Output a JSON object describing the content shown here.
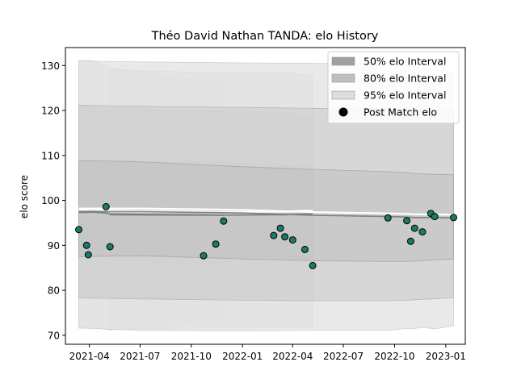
{
  "chart_data": {
    "type": "scatter",
    "title": "Théo David Nathan TANDA: elo History",
    "xlabel": "",
    "ylabel": "elo score",
    "ylim": [
      68,
      134
    ],
    "xlim": [
      "2021-02-17",
      "2023-02-05"
    ],
    "yticks": [
      70,
      80,
      90,
      100,
      110,
      120,
      130
    ],
    "xticks": [
      {
        "date": "2021-04-01",
        "label": "2021-04"
      },
      {
        "date": "2021-07-01",
        "label": "2021-07"
      },
      {
        "date": "2021-10-01",
        "label": "2021-10"
      },
      {
        "date": "2022-01-01",
        "label": "2022-01"
      },
      {
        "date": "2022-04-01",
        "label": "2022-04"
      },
      {
        "date": "2022-07-01",
        "label": "2022-07"
      },
      {
        "date": "2022-10-01",
        "label": "2022-10"
      },
      {
        "date": "2023-01-01",
        "label": "2023-01"
      }
    ],
    "legend": {
      "placement": "upper right",
      "entries": [
        {
          "label": "50% elo Interval",
          "kind": "patch",
          "color": "#a0a0a0"
        },
        {
          "label": "80% elo Interval",
          "kind": "patch",
          "color": "#bebebe"
        },
        {
          "label": "95% elo Interval",
          "kind": "patch",
          "color": "#dcdcdc"
        },
        {
          "label": "Post Match elo",
          "kind": "marker",
          "color": "#000000"
        }
      ]
    },
    "band_colors": {
      "p95": "#e2e2e2",
      "p80": "#c9c9c9",
      "p50": "#bababa",
      "mean": "#808080",
      "mean_line_white": "#ffffff"
    },
    "point_color": "#1a7a6a",
    "series": [
      {
        "kind": "bands",
        "x": [
          "2021-03-13",
          "2021-03-27",
          "2021-04-03",
          "2021-05-01",
          "2021-05-08",
          "2021-10-23",
          "2021-11-14",
          "2021-11-28"
        ],
        "mean": [
          97.3,
          97.3,
          97.4,
          97.2,
          97.0,
          96.8,
          96.7,
          96.7
        ],
        "p50_low": [
          87.5,
          87.6,
          87.8,
          87.8,
          88.0,
          86.8,
          87.2,
          87.2
        ],
        "p50_high": [
          108.8,
          108.7,
          108.6,
          108.4,
          108.2,
          106.4,
          106.6,
          106.6
        ],
        "p80_low": [
          78.3,
          78.3,
          78.6,
          78.8,
          79.0,
          78.8,
          78.6,
          78.6
        ],
        "p80_high": [
          121.2,
          120.9,
          120.8,
          120.2,
          119.9,
          118.7,
          118.8,
          118.8
        ],
        "p95_low": [
          71.6,
          71.6,
          71.7,
          71.3,
          71.2,
          72.8,
          72.5,
          72.5
        ],
        "p95_high": [
          131.0,
          131.1,
          131.1,
          130.0,
          129.5,
          126.7,
          127.7,
          127.7
        ]
      },
      {
        "kind": "bands",
        "x": [
          "2021-05-08",
          "2021-11-14",
          "2022-02-26",
          "2022-03-10",
          "2022-03-18",
          "2022-04-01",
          "2022-04-23",
          "2022-05-07"
        ],
        "mean": [
          96.8,
          96.7,
          96.8,
          96.8,
          96.8,
          96.9,
          97.0,
          97.0
        ],
        "p50_low": [
          87.8,
          87.6,
          87.5,
          87.5,
          87.4,
          87.4,
          87.2,
          87.2
        ],
        "p50_high": [
          108.6,
          108.4,
          108.0,
          107.8,
          107.8,
          107.6,
          107.5,
          107.3
        ],
        "p80_low": [
          78.4,
          78.5,
          78.6,
          78.7,
          78.8,
          78.8,
          78.8,
          78.8
        ],
        "p80_high": [
          120.2,
          119.8,
          119.2,
          119.0,
          119.0,
          118.9,
          118.7,
          118.6
        ],
        "p95_low": [
          71.3,
          71.7,
          71.9,
          71.9,
          71.9,
          71.8,
          71.8,
          71.7
        ],
        "p95_high": [
          129.0,
          128.4,
          128.2,
          128.3,
          128.3,
          128.2,
          128.0,
          127.6
        ]
      },
      {
        "kind": "bands",
        "x": [
          "2021-03-13",
          "2021-07-01",
          "2022-01-01",
          "2022-05-07",
          "2022-09-19",
          "2022-10-23",
          "2022-11-06",
          "2022-11-20",
          "2022-12-12",
          "2023-01-15"
        ],
        "mean": [
          97.5,
          97.5,
          97.2,
          96.7,
          96.4,
          96.3,
          96.2,
          96.2,
          96.2,
          96.1
        ],
        "p50_low": [
          87.5,
          87.7,
          87.0,
          86.6,
          86.4,
          86.4,
          86.5,
          86.6,
          86.8,
          87.0
        ],
        "p50_high": [
          108.9,
          108.6,
          107.5,
          106.9,
          106.4,
          106.2,
          106.0,
          105.9,
          105.8,
          105.7
        ],
        "p80_low": [
          78.3,
          78.1,
          77.8,
          77.7,
          77.7,
          77.8,
          77.9,
          78.0,
          78.1,
          78.4
        ],
        "p80_high": [
          121.2,
          120.9,
          120.7,
          120.5,
          120.4,
          120.2,
          120.2,
          120.1,
          120.0,
          120.0
        ],
        "p95_low": [
          71.6,
          71.1,
          71.0,
          71.1,
          71.1,
          71.5,
          71.5,
          71.8,
          71.4,
          72.1
        ],
        "p95_high": [
          131.0,
          130.8,
          130.6,
          130.5,
          130.2,
          130.0,
          129.7,
          129.4,
          129.0,
          128.6
        ]
      }
    ],
    "points": {
      "name": "Post Match elo",
      "x": [
        "2021-03-13",
        "2021-03-27",
        "2021-03-30",
        "2021-05-01",
        "2021-05-08",
        "2021-10-23",
        "2021-11-14",
        "2021-11-28",
        "2022-02-26",
        "2022-03-10",
        "2022-03-18",
        "2022-04-01",
        "2022-04-23",
        "2022-05-07",
        "2022-09-19",
        "2022-10-23",
        "2022-10-30",
        "2022-11-06",
        "2022-11-20",
        "2022-12-05",
        "2022-12-12",
        "2023-01-15"
      ],
      "y": [
        93.5,
        90.0,
        87.9,
        98.6,
        89.7,
        87.7,
        90.3,
        95.4,
        92.2,
        93.8,
        91.9,
        91.2,
        89.1,
        85.5,
        96.1,
        95.5,
        90.9,
        93.8,
        93.0,
        97.1,
        96.4,
        96.2
      ]
    }
  }
}
